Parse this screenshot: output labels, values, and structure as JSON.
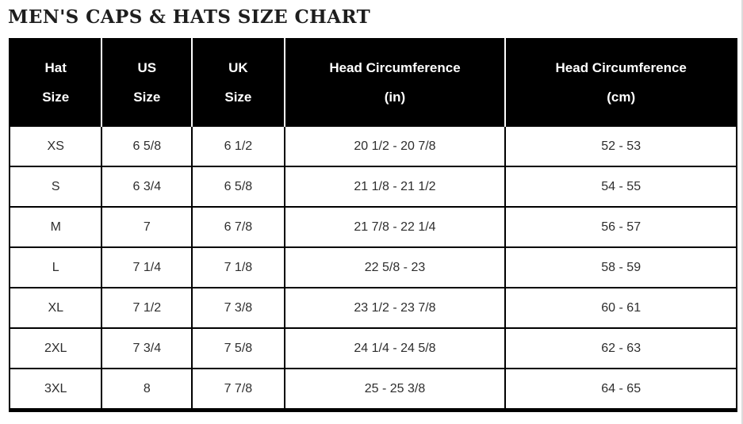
{
  "page": {
    "title": "MEN'S CAPS & HATS SIZE CHART"
  },
  "table": {
    "columns": [
      {
        "line1": "Hat",
        "line2": "Size"
      },
      {
        "line1": "US",
        "line2": "Size"
      },
      {
        "line1": "UK",
        "line2": "Size"
      },
      {
        "line1": "Head Circumference",
        "line2": "(in)"
      },
      {
        "line1": "Head Circumference",
        "line2": "(cm)"
      }
    ],
    "rows": [
      [
        "XS",
        "6 5/8",
        "6 1/2",
        "20 1/2 - 20 7/8",
        "52 - 53"
      ],
      [
        "S",
        "6 3/4",
        "6 5/8",
        "21 1/8 - 21 1/2",
        "54 - 55"
      ],
      [
        "M",
        "7",
        "6 7/8",
        "21 7/8 - 22 1/4",
        "56 - 57"
      ],
      [
        "L",
        "7 1/4",
        "7 1/8",
        "22 5/8 - 23",
        "58 - 59"
      ],
      [
        "XL",
        "7 1/2",
        "7 3/8",
        "23 1/2 - 23 7/8",
        "60 - 61"
      ],
      [
        "2XL",
        "7 3/4",
        "7 5/8",
        "24 1/4 - 24 5/8",
        "62 - 63"
      ],
      [
        "3XL",
        "8",
        "7 7/8",
        "25 - 25 3/8",
        "64 - 65"
      ]
    ]
  },
  "colors": {
    "header_bg": "#000000",
    "header_text": "#ffffff",
    "body_text": "#2e2e2e",
    "border": "#000000",
    "background": "#ffffff"
  }
}
